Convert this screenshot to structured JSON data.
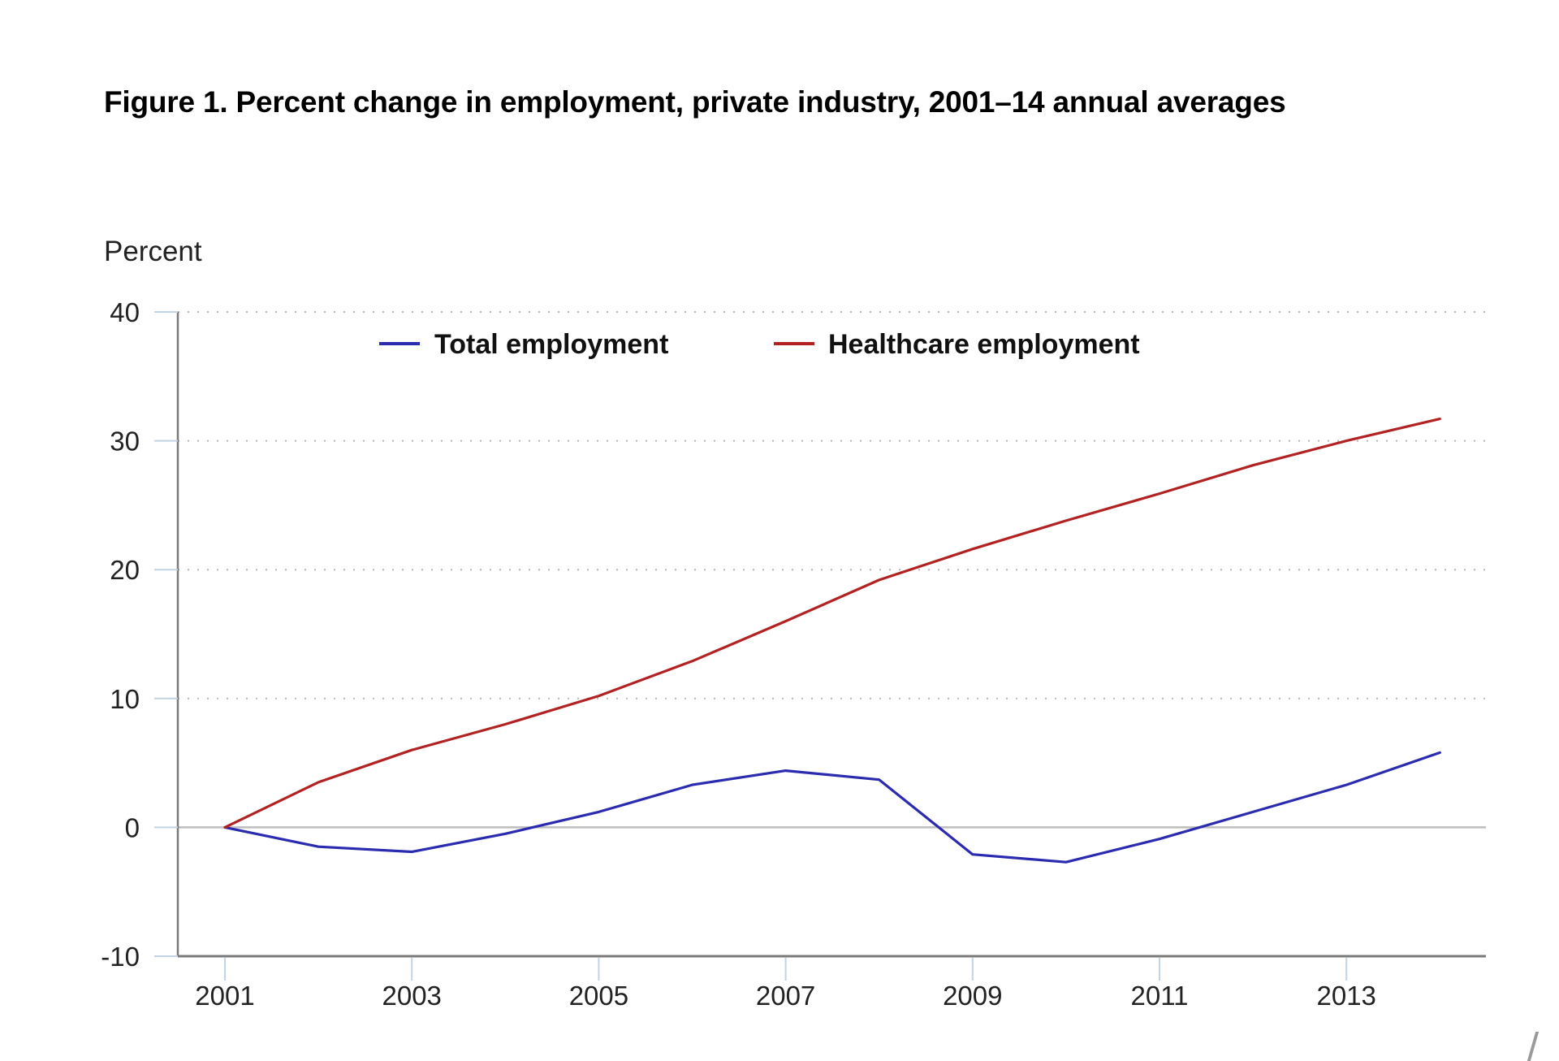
{
  "chart_data": {
    "type": "line",
    "title": "Figure 1. Percent change in employment, private industry, 2001–14 annual averages",
    "xlabel": "",
    "ylabel": "Percent",
    "x": [
      2001,
      2002,
      2003,
      2004,
      2005,
      2006,
      2007,
      2008,
      2009,
      2010,
      2011,
      2012,
      2013,
      2014
    ],
    "xlim": [
      2000.5,
      2014.5
    ],
    "ylim": [
      -10,
      40
    ],
    "yticks": [
      40,
      30,
      20,
      10,
      0,
      -10
    ],
    "xticks": [
      2001,
      2003,
      2005,
      2007,
      2009,
      2011,
      2013
    ],
    "ytick_labels": [
      "40",
      "30",
      "20",
      "10",
      "0",
      "-10"
    ],
    "xtick_labels": [
      "2001",
      "2003",
      "2005",
      "2007",
      "2009",
      "2011",
      "2013"
    ],
    "grid": "horizontal dotted",
    "legend": {
      "placement": "top-center",
      "orientation": "horizontal"
    },
    "series": [
      {
        "name": "Total employment",
        "color": "#2b2bb0",
        "values": [
          0,
          -1.5,
          -1.9,
          -0.5,
          1.2,
          3.3,
          4.4,
          3.7,
          -2.1,
          -2.7,
          -0.9,
          1.2,
          3.3,
          5.8
        ]
      },
      {
        "name": "Healthcare employment",
        "color": "#b22222",
        "values": [
          0,
          3.5,
          6.0,
          8.0,
          10.2,
          12.9,
          16.0,
          19.2,
          21.6,
          23.8,
          25.9,
          28.1,
          30.0,
          31.7
        ]
      }
    ]
  }
}
